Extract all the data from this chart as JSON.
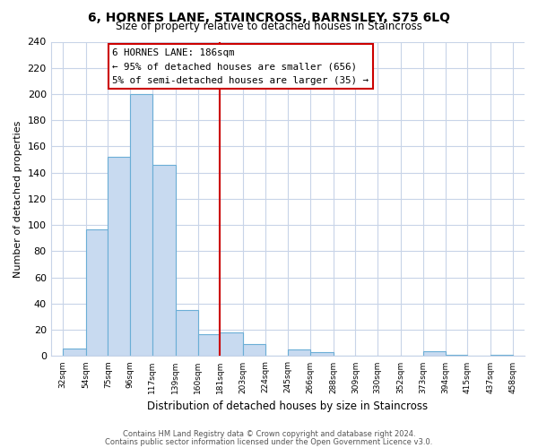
{
  "title": "6, HORNES LANE, STAINCROSS, BARNSLEY, S75 6LQ",
  "subtitle": "Size of property relative to detached houses in Staincross",
  "xlabel": "Distribution of detached houses by size in Staincross",
  "ylabel": "Number of detached properties",
  "bar_left_edges": [
    32,
    54,
    75,
    96,
    117,
    139,
    160,
    181,
    203,
    224,
    245,
    266,
    288,
    309,
    330,
    352,
    373,
    394,
    415,
    437
  ],
  "bar_heights": [
    6,
    97,
    152,
    200,
    146,
    35,
    17,
    18,
    9,
    0,
    5,
    3,
    0,
    0,
    0,
    0,
    4,
    1,
    0,
    1
  ],
  "bar_widths": [
    22,
    21,
    21,
    21,
    22,
    21,
    21,
    22,
    21,
    21,
    21,
    22,
    21,
    21,
    22,
    21,
    21,
    21,
    22,
    21
  ],
  "bar_color": "#c8daf0",
  "bar_edgecolor": "#6baed6",
  "vline_x": 181,
  "vline_color": "#cc0000",
  "tick_labels": [
    "32sqm",
    "54sqm",
    "75sqm",
    "96sqm",
    "117sqm",
    "139sqm",
    "160sqm",
    "181sqm",
    "203sqm",
    "224sqm",
    "245sqm",
    "266sqm",
    "288sqm",
    "309sqm",
    "330sqm",
    "352sqm",
    "373sqm",
    "394sqm",
    "415sqm",
    "437sqm",
    "458sqm"
  ],
  "tick_positions": [
    32,
    54,
    75,
    96,
    117,
    139,
    160,
    181,
    203,
    224,
    245,
    266,
    288,
    309,
    330,
    352,
    373,
    394,
    415,
    437,
    458
  ],
  "ylim": [
    0,
    240
  ],
  "yticks": [
    0,
    20,
    40,
    60,
    80,
    100,
    120,
    140,
    160,
    180,
    200,
    220,
    240
  ],
  "xlim": [
    21,
    469
  ],
  "annotation_title": "6 HORNES LANE: 186sqm",
  "annotation_line1": "← 95% of detached houses are smaller (656)",
  "annotation_line2": "5% of semi-detached houses are larger (35) →",
  "footer_line1": "Contains HM Land Registry data © Crown copyright and database right 2024.",
  "footer_line2": "Contains public sector information licensed under the Open Government Licence v3.0.",
  "background_color": "#ffffff",
  "grid_color": "#c8d4e8"
}
